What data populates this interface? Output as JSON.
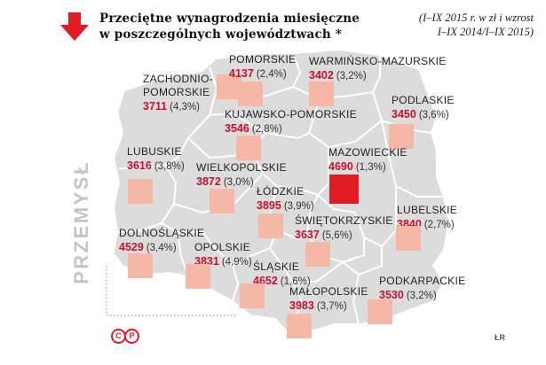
{
  "header": {
    "title_line1": "Przeciętne wynagrodzenia miesięczne",
    "title_line2": "w poszczególnych województwach *",
    "note_line1": "(I–IX 2015 r. w zł i wzrost",
    "note_line2": "I–IX 2014/I–IX 2015)",
    "arrow_icon": "arrow-down-icon"
  },
  "industry_label": "PRZEMYSŁ",
  "colors": {
    "accent": "#e11b22",
    "value_text": "#c8102e",
    "box_fill": "#f6b8a6",
    "map_fill": "#dcdcdc",
    "border": "#ffffff"
  },
  "regions": {
    "zachodniopomorskie": {
      "name_line1": "ZACHODNIO-",
      "name_line2": "POMORSKIE",
      "value": "3711",
      "change": "(4,3%)"
    },
    "pomorskie": {
      "name": "POMORSKIE",
      "value": "4137",
      "change": "(2,4%)"
    },
    "warminsko_mazurskie": {
      "name": "WARMIŃSKO-MAZURSKIE",
      "value": "3402",
      "change": "(3,2%)"
    },
    "podlaskie": {
      "name": "PODLASKIE",
      "value": "3450",
      "change": "(3,6%)"
    },
    "kujawsko_pomorskie": {
      "name": "KUJAWSKO-POMORSKIE",
      "value": "3546",
      "change": "(2,8%)"
    },
    "lubuskie": {
      "name": "LUBUSKIE",
      "value": "3616",
      "change": "(3,8%)"
    },
    "wielkopolskie": {
      "name": "WIELKOPOLSKIE",
      "value": "3872",
      "change": "(3,0%)"
    },
    "mazowieckie": {
      "name": "MAZOWIECKIE",
      "value": "4690",
      "change": "(1,3%)"
    },
    "lodzkie": {
      "name": "ŁÓDZKIE",
      "value": "3895",
      "change": "(3,9%)"
    },
    "lubelskie": {
      "name": "LUBELSKIE",
      "value": "3840",
      "change": "(2,7%)"
    },
    "dolnoslaskie": {
      "name": "DOLNOŚLĄSKIE",
      "value": "4529",
      "change": "(3,4%)"
    },
    "opolskie": {
      "name": "OPOLSKIE",
      "value": "3831",
      "change": "(4,9%)"
    },
    "swietokrzyskie": {
      "name": "ŚWIĘTOKRZYSKIE",
      "value": "3637",
      "change": "(5,6%)"
    },
    "slaskie": {
      "name": "ŚLĄSKIE",
      "value": "4652",
      "change": "(1,6%)"
    },
    "malopolskie": {
      "name": "MAŁOPOLSKIE",
      "value": "3983",
      "change": "(3,7%)"
    },
    "podkarpackie": {
      "name": "PODKARPACKIE",
      "value": "3530",
      "change": "(3,2%)"
    }
  },
  "footer": {
    "logo_text": "©P",
    "author": "ŁR"
  }
}
